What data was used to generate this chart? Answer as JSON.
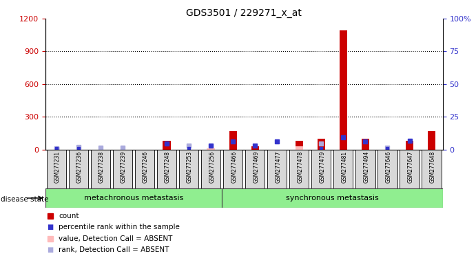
{
  "title": "GDS3501 / 229271_x_at",
  "samples": [
    "GSM277231",
    "GSM277236",
    "GSM277238",
    "GSM277239",
    "GSM277246",
    "GSM277248",
    "GSM277253",
    "GSM277256",
    "GSM277466",
    "GSM277469",
    "GSM277477",
    "GSM277478",
    "GSM277479",
    "GSM277481",
    "GSM277494",
    "GSM277646",
    "GSM277647",
    "GSM277648"
  ],
  "group1_label": "metachronous metastasis",
  "group2_label": "synchronous metastasis",
  "group1_count": 8,
  "group2_count": 10,
  "ylim_left": [
    0,
    1200
  ],
  "ylim_right": [
    0,
    100
  ],
  "yticks_left": [
    0,
    300,
    600,
    900,
    1200
  ],
  "yticks_right_vals": [
    0,
    25,
    50,
    75,
    100
  ],
  "yticks_right_labels": [
    "0",
    "25",
    "50",
    "75",
    "100%"
  ],
  "red_bars": [
    5,
    5,
    5,
    5,
    5,
    80,
    5,
    5,
    170,
    30,
    5,
    80,
    100,
    1090,
    100,
    5,
    80,
    170
  ],
  "pink_bars": [
    0,
    0,
    0,
    0,
    0,
    0,
    0,
    12,
    0,
    0,
    0,
    30,
    0,
    0,
    0,
    0,
    0,
    0
  ],
  "blue_squares": [
    50,
    10,
    10,
    10,
    10,
    470,
    10,
    330,
    640,
    290,
    620,
    10,
    10,
    940,
    610,
    10,
    660,
    10
  ],
  "lavender_squares": [
    80,
    220,
    180,
    150,
    10,
    10,
    305,
    10,
    10,
    10,
    10,
    10,
    460,
    10,
    10,
    130,
    10,
    10
  ],
  "absent_blue": [
    1,
    1,
    0,
    0,
    0,
    0,
    1,
    0,
    0,
    0,
    0,
    0,
    1,
    0,
    0,
    1,
    0,
    0
  ],
  "absent_red": [
    0,
    0,
    0,
    0,
    0,
    0,
    0,
    1,
    0,
    0,
    0,
    1,
    0,
    0,
    0,
    0,
    0,
    0
  ],
  "bg_color": "#d8d8d8",
  "group_bg": "#90EE90",
  "red_color": "#cc0000",
  "blue_color": "#3333cc",
  "pink_color": "#ffbbbb",
  "lavender_color": "#aaaadd",
  "legend_labels": [
    "count",
    "percentile rank within the sample",
    "value, Detection Call = ABSENT",
    "rank, Detection Call = ABSENT"
  ]
}
